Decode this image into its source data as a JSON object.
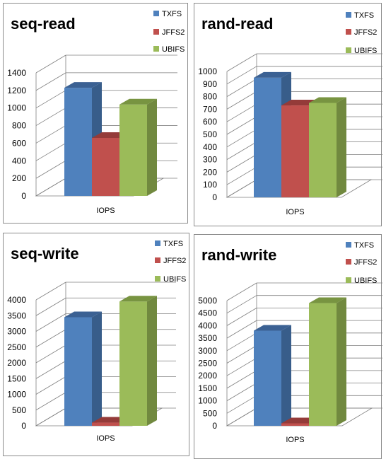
{
  "chart_data": [
    {
      "type": "bar",
      "title": "seq-read",
      "categories": [
        "IOPS"
      ],
      "series": [
        {
          "name": "TXFS",
          "values": [
            1230
          ]
        },
        {
          "name": "JFFS2",
          "values": [
            660
          ]
        },
        {
          "name": "UBIFS",
          "values": [
            1040
          ]
        }
      ],
      "ylim": [
        0,
        1400
      ],
      "yticks": [
        0,
        200,
        400,
        600,
        800,
        1000,
        1200,
        1400
      ],
      "grid": true,
      "legend": "right",
      "three_d": true
    },
    {
      "type": "bar",
      "title": "rand-read",
      "categories": [
        "IOPS"
      ],
      "series": [
        {
          "name": "TXFS",
          "values": [
            950
          ]
        },
        {
          "name": "JFFS2",
          "values": [
            730
          ]
        },
        {
          "name": "UBIFS",
          "values": [
            750
          ]
        }
      ],
      "ylim": [
        0,
        1000
      ],
      "yticks": [
        0,
        100,
        200,
        300,
        400,
        500,
        600,
        700,
        800,
        900,
        1000
      ],
      "grid": true,
      "legend": "right",
      "three_d": true
    },
    {
      "type": "bar",
      "title": "seq-write",
      "categories": [
        "IOPS"
      ],
      "series": [
        {
          "name": "TXFS",
          "values": [
            3450
          ]
        },
        {
          "name": "JFFS2",
          "values": [
            100
          ]
        },
        {
          "name": "UBIFS",
          "values": [
            3950
          ]
        }
      ],
      "ylim": [
        0,
        4000
      ],
      "yticks": [
        0,
        500,
        1000,
        1500,
        2000,
        2500,
        3000,
        3500,
        4000
      ],
      "grid": true,
      "legend": "right",
      "three_d": true
    },
    {
      "type": "bar",
      "title": "rand-write",
      "categories": [
        "IOPS"
      ],
      "series": [
        {
          "name": "TXFS",
          "values": [
            3800
          ]
        },
        {
          "name": "JFFS2",
          "values": [
            100
          ]
        },
        {
          "name": "UBIFS",
          "values": [
            4900
          ]
        }
      ],
      "ylim": [
        0,
        5000
      ],
      "yticks": [
        0,
        500,
        1000,
        1500,
        2000,
        2500,
        3000,
        3500,
        4000,
        4500,
        5000
      ],
      "grid": true,
      "legend": "right",
      "three_d": true
    }
  ],
  "colors": {
    "TXFS": {
      "front": "#4f81bd",
      "top": "#3b6193",
      "side": "#385d8a"
    },
    "JFFS2": {
      "front": "#c0504d",
      "top": "#943b39",
      "side": "#8c3836"
    },
    "UBIFS": {
      "front": "#9bbb59",
      "top": "#789441",
      "side": "#71893f"
    },
    "grid": "#7f7f7f",
    "border": "#8c8c8c"
  }
}
